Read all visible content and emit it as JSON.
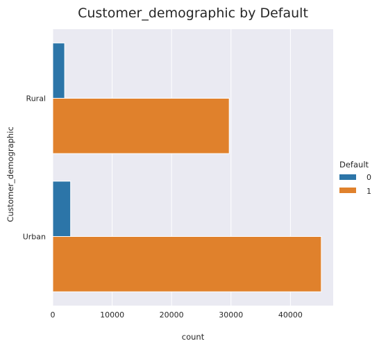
{
  "chart_data": {
    "type": "bar",
    "orientation": "horizontal",
    "title": "Customer_demographic by Default",
    "xlabel": "count",
    "ylabel": "Customer_demographic",
    "categories": [
      "Rural",
      "Urban"
    ],
    "series": [
      {
        "name": "0",
        "values": [
          2000,
          3000
        ],
        "color": "#2c75a8"
      },
      {
        "name": "1",
        "values": [
          29700,
          45200
        ],
        "color": "#e0812c"
      }
    ],
    "xlim": [
      0,
      47200
    ],
    "xticks": [
      0,
      10000,
      20000,
      30000,
      40000
    ],
    "xtick_labels": [
      "0",
      "10000",
      "20000",
      "30000",
      "40000"
    ],
    "grid": true,
    "background_color": "#eaeaf2",
    "legend": {
      "title": "Default",
      "labels": [
        "0",
        "1"
      ],
      "placement": "right"
    }
  }
}
